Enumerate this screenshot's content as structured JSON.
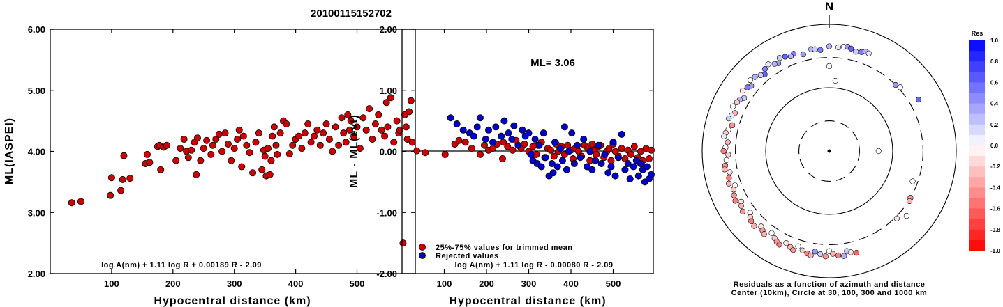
{
  "event_id": "20100115152702",
  "chart_data": [
    {
      "type": "scatter",
      "xlabel": "Hypocentral distance (km)",
      "ylabel": "ML(IASPEI)",
      "xlim": [
        0,
        595
      ],
      "ylim": [
        2.0,
        6.0
      ],
      "xticks": [
        "100",
        "200",
        "300",
        "400",
        "500"
      ],
      "yticks": [
        "2.00",
        "3.00",
        "4.00",
        "5.00",
        "6.00"
      ],
      "grid": false,
      "formula": "log A(nm) + 1.11 log R + 0.00189 R - 2.09",
      "series": [
        {
          "color": "#cc0000",
          "x": [
            35,
            50,
            98,
            100,
            115,
            118,
            120,
            130,
            155,
            158,
            162,
            175,
            178,
            180,
            185,
            190,
            205,
            212,
            218,
            222,
            225,
            230,
            235,
            238,
            240,
            245,
            250,
            255,
            262,
            265,
            270,
            275,
            280,
            285,
            290,
            295,
            300,
            305,
            308,
            312,
            315,
            320,
            325,
            330,
            335,
            340,
            345,
            348,
            350,
            352,
            355,
            358,
            360,
            362,
            365,
            368,
            370,
            375,
            380,
            385,
            390,
            395,
            400,
            405,
            410,
            415,
            420,
            425,
            430,
            435,
            440,
            445,
            450,
            455,
            460,
            465,
            470,
            475,
            478,
            482,
            485,
            488,
            490,
            495,
            500,
            505,
            510,
            515,
            520,
            525,
            530,
            535,
            540,
            545,
            548,
            550,
            555,
            560,
            565,
            568,
            570,
            575,
            578,
            580,
            582,
            585,
            588,
            590
          ],
          "y": [
            3.16,
            3.18,
            3.28,
            3.57,
            3.36,
            3.54,
            3.93,
            3.56,
            3.8,
            3.95,
            3.82,
            4.08,
            4.1,
            3.7,
            4.07,
            4.1,
            3.85,
            4.05,
            4.2,
            4.0,
            3.9,
            4.02,
            4.15,
            3.62,
            4.22,
            3.85,
            4.05,
            4.18,
            3.95,
            4.1,
            4.2,
            4.28,
            4.0,
            4.3,
            4.12,
            3.85,
            4.05,
            4.2,
            4.35,
            3.75,
            4.25,
            4.1,
            3.98,
            3.65,
            4.15,
            4.3,
            3.7,
            4.02,
            3.92,
            3.6,
            4.05,
            3.62,
            3.85,
            4.25,
            4.4,
            4.1,
            3.95,
            4.3,
            4.5,
            4.45,
            3.96,
            4.1,
            4.2,
            4.25,
            4.05,
            4.3,
            4.45,
            4.15,
            4.25,
            4.35,
            4.1,
            4.3,
            4.45,
            4.2,
            4.0,
            4.4,
            4.1,
            4.55,
            4.3,
            4.15,
            4.6,
            4.35,
            4.5,
            4.25,
            4.4,
            4.05,
            4.55,
            4.35,
            4.7,
            4.2,
            4.45,
            4.6,
            4.35,
            4.25,
            4.8,
            4.4,
            4.88,
            4.15,
            4.5,
            4.3,
            4.35,
            2.5,
            4.6,
            4.4,
            4.2,
            4.65,
            4.83,
            4.15
          ]
        }
      ]
    },
    {
      "type": "scatter",
      "xlabel": "Hypocentral distance (km)",
      "ylabel": "ML - ML(evt)",
      "xlim": [
        0,
        595
      ],
      "ylim": [
        -2.0,
        2.0
      ],
      "xticks": [
        "100",
        "200",
        "300",
        "400",
        "500"
      ],
      "yticks": [
        "-2.00",
        "-1.00",
        "0.00",
        "1.00",
        "2.00"
      ],
      "grid": false,
      "ml_label": "ML= 3.06",
      "formula": "log A(nm) + 1.11 log R - 0.00080 R - 2.09",
      "legend": [
        "25%-75% values for trimmed mean",
        "Rejected values"
      ],
      "series": [
        {
          "name": "25%-75% values for trimmed mean",
          "color": "#cc0000",
          "x": [
            35,
            55,
            102,
            125,
            135,
            150,
            165,
            185,
            195,
            205,
            215,
            225,
            238,
            240,
            250,
            262,
            270,
            275,
            282,
            290,
            300,
            310,
            318,
            322,
            330,
            338,
            345,
            352,
            360,
            365,
            370,
            378,
            385,
            392,
            400,
            405,
            410,
            418,
            425,
            432,
            440,
            445,
            450,
            455,
            460,
            465,
            470,
            478,
            485,
            490,
            495,
            500,
            505,
            512,
            520,
            528,
            535,
            542,
            550,
            558,
            565,
            570,
            578,
            585,
            590
          ],
          "y": [
            0.01,
            -0.02,
            -0.05,
            0.12,
            0.18,
            0.15,
            0.05,
            -0.05,
            0.1,
            0.02,
            0.05,
            0.12,
            -0.12,
            0.15,
            0.08,
            0.02,
            0.18,
            0.1,
            0.05,
            0.12,
            0.0,
            0.08,
            -0.05,
            0.1,
            0.15,
            -0.1,
            0.05,
            0.02,
            -0.08,
            0.12,
            0.0,
            0.08,
            -0.05,
            0.1,
            0.02,
            -0.12,
            0.05,
            0.0,
            -0.08,
            0.1,
            0.05,
            -0.15,
            0.12,
            0.02,
            -0.05,
            0.08,
            0.1,
            -0.1,
            0.0,
            0.05,
            -0.15,
            0.12,
            0.0,
            -0.08,
            0.05,
            -0.12,
            0.02,
            -0.05,
            0.08,
            -0.1,
            0.0,
            -0.15,
            0.05,
            -0.12,
            0.02
          ]
        },
        {
          "name": "Rejected values",
          "color": "#0000cc",
          "x": [
            115,
            130,
            145,
            160,
            170,
            178,
            185,
            198,
            205,
            215,
            222,
            235,
            242,
            252,
            260,
            265,
            275,
            285,
            292,
            300,
            305,
            310,
            315,
            320,
            325,
            330,
            335,
            340,
            348,
            355,
            358,
            362,
            368,
            375,
            380,
            385,
            390,
            395,
            402,
            408,
            415,
            422,
            430,
            438,
            445,
            450,
            458,
            465,
            472,
            480,
            488,
            495,
            500,
            505,
            512,
            520,
            528,
            535,
            540,
            548,
            555,
            560,
            565,
            570,
            575,
            580,
            585,
            590
          ],
          "y": [
            0.55,
            0.45,
            0.35,
            0.3,
            0.25,
            0.4,
            0.55,
            0.2,
            0.35,
            0.15,
            0.4,
            0.25,
            0.5,
            0.3,
            0.2,
            0.42,
            0.1,
            0.35,
            0.25,
            0.3,
            -0.05,
            -0.15,
            0.2,
            -0.2,
            0.1,
            -0.25,
            0.3,
            -0.1,
            -0.4,
            -0.2,
            -0.35,
            0.15,
            -0.25,
            0.05,
            -0.15,
            0.4,
            -0.3,
            0.0,
            0.3,
            -0.2,
            0.1,
            -0.1,
            0.2,
            -0.25,
            0.0,
            -0.3,
            -0.15,
            0.1,
            -0.2,
            -0.05,
            -0.35,
            -0.25,
            0.15,
            -0.4,
            -0.1,
            0.28,
            -0.3,
            -0.2,
            -0.45,
            -0.25,
            -0.15,
            -0.4,
            -0.2,
            -0.3,
            -0.5,
            -0.25,
            -0.45,
            -0.38
          ]
        }
      ]
    },
    {
      "type": "scatter",
      "title": "N",
      "caption": "Residuals as a function of azimuth and distance",
      "caption2": "Center (10km), Circle at 30, 100, 300 and 1000 km",
      "colorbar_label": "Res",
      "colorbar_ticks": [
        "1.0",
        "0.8",
        "0.6",
        "0.4",
        "0.2",
        "0.0",
        "-0.2",
        "-0.4",
        "-0.6",
        "-0.8",
        "-1.0"
      ],
      "colorbar_range": [
        -1.0,
        1.0
      ],
      "circles_km": [
        30,
        100,
        300,
        1000
      ],
      "points": {
        "azimuth_deg": [
          350,
          352,
          355,
          0,
          5,
          8,
          10,
          12,
          15,
          18,
          20,
          22,
          345,
          340,
          338,
          335,
          332,
          330,
          328,
          325,
          322,
          320,
          318,
          315,
          312,
          310,
          308,
          305,
          302,
          300,
          298,
          295,
          292,
          290,
          288,
          285,
          282,
          280,
          278,
          275,
          272,
          270,
          268,
          265,
          262,
          260,
          258,
          255,
          252,
          250,
          248,
          245,
          242,
          240,
          238,
          235,
          232,
          230,
          228,
          225,
          222,
          220,
          218,
          215,
          212,
          210,
          208,
          205,
          202,
          200,
          198,
          195,
          192,
          190,
          188,
          185,
          182,
          180,
          178,
          175,
          172,
          170,
          168,
          165,
          45,
          48,
          120,
          122,
          60,
          110,
          130,
          135,
          90,
          0,
          5
        ],
        "distance_km": [
          430,
          420,
          400,
          450,
          440,
          460,
          470,
          450,
          420,
          440,
          470,
          460,
          380,
          430,
          410,
          440,
          460,
          400,
          420,
          470,
          440,
          380,
          410,
          450,
          470,
          400,
          430,
          460,
          380,
          420,
          440,
          470,
          400,
          430,
          460,
          380,
          420,
          450,
          470,
          400,
          430,
          460,
          390,
          420,
          450,
          470,
          400,
          430,
          460,
          380,
          420,
          450,
          470,
          400,
          430,
          460,
          380,
          420,
          450,
          470,
          400,
          430,
          460,
          380,
          420,
          450,
          470,
          400,
          430,
          460,
          380,
          420,
          450,
          470,
          400,
          430,
          460,
          380,
          420,
          450,
          470,
          400,
          430,
          460,
          300,
          320,
          300,
          310,
          420,
          250,
          390,
          320,
          60,
          220,
          130
        ],
        "residual": [
          0.3,
          0.2,
          0.5,
          0.3,
          0.1,
          0.0,
          0.4,
          0.6,
          0.2,
          0.5,
          0.3,
          0.1,
          0.4,
          0.5,
          0.3,
          0.6,
          0.2,
          0.4,
          0.3,
          0.1,
          0.5,
          0.6,
          0.2,
          0.3,
          0.0,
          0.4,
          0.5,
          -0.1,
          0.2,
          0.3,
          -0.2,
          0.0,
          -0.3,
          0.1,
          0.2,
          -0.4,
          0.0,
          -0.2,
          0.1,
          -0.3,
          0.0,
          -0.5,
          -0.2,
          0.0,
          -0.4,
          -0.3,
          -0.1,
          -0.5,
          -0.3,
          0.0,
          -0.2,
          -0.4,
          -0.5,
          -0.1,
          -0.3,
          -0.4,
          0.0,
          -0.2,
          -0.5,
          -0.3,
          -0.1,
          -0.4,
          -0.3,
          0.0,
          -0.2,
          -0.4,
          -0.5,
          -0.1,
          -0.3,
          -0.4,
          0.0,
          -0.2,
          -0.5,
          -0.3,
          0.4,
          0.2,
          -0.4,
          0.0,
          -0.3,
          -0.5,
          0.3,
          0.2,
          -0.1,
          -0.6,
          0.4,
          0.0,
          -0.4,
          -0.3,
          0.6,
          0.0,
          0.0,
          -0.1,
          0.0,
          0.0,
          0.0
        ]
      }
    }
  ]
}
